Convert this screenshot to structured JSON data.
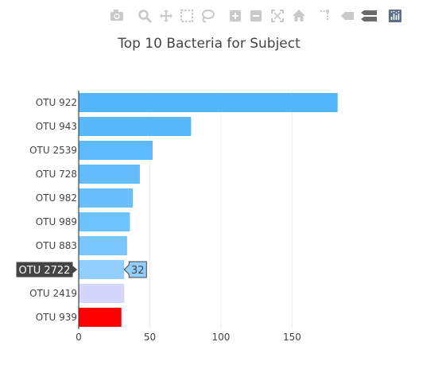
{
  "chart_data": {
    "type": "bar",
    "orientation": "horizontal",
    "title": "Top 10 Bacteria for Subject",
    "categories": [
      "OTU 922",
      "OTU 943",
      "OTU 2539",
      "OTU 728",
      "OTU 982",
      "OTU 989",
      "OTU 883",
      "OTU 2722",
      "OTU 2419",
      "OTU 939"
    ],
    "values": [
      182,
      79,
      52,
      43,
      38,
      36,
      34,
      32,
      32,
      30
    ],
    "bar_colors": [
      "#53b6fb",
      "#58b8fb",
      "#5dbafc",
      "#63bdfc",
      "#68bffc",
      "#6ec2fd",
      "#78c6fd",
      "#93cffe",
      "#d6d6fc",
      "#ff0000"
    ],
    "xlim": [
      0,
      190
    ],
    "xticks": [
      0,
      50,
      100,
      150
    ],
    "grid": true,
    "xlabel": "",
    "ylabel": "",
    "hover": {
      "category": "OTU 2722",
      "label": "OTU 2722",
      "value_label": "32"
    }
  },
  "modebar": {
    "buttons": [
      {
        "name": "download-plot-button",
        "icon": "camera-icon"
      },
      {
        "name": "zoom-button",
        "icon": "magnifier-icon"
      },
      {
        "name": "pan-button",
        "icon": "pan-arrows-icon"
      },
      {
        "name": "box-select-button",
        "icon": "box-select-icon"
      },
      {
        "name": "lasso-select-button",
        "icon": "lasso-icon"
      },
      {
        "name": "zoom-in-button",
        "icon": "plus-box-icon"
      },
      {
        "name": "zoom-out-button",
        "icon": "minus-box-icon"
      },
      {
        "name": "autoscale-button",
        "icon": "autoscale-icon"
      },
      {
        "name": "reset-axes-button",
        "icon": "home-icon"
      },
      {
        "name": "spike-lines-button",
        "icon": "spike-lines-icon"
      },
      {
        "name": "hover-closest-button",
        "icon": "hover-closest-icon"
      },
      {
        "name": "hover-compare-button",
        "icon": "hover-compare-icon"
      },
      {
        "name": "plotly-logo-button",
        "icon": "plotly-logo-icon"
      }
    ],
    "icon_color": "#c9c9c9",
    "active_color": "#5a6e8c"
  }
}
